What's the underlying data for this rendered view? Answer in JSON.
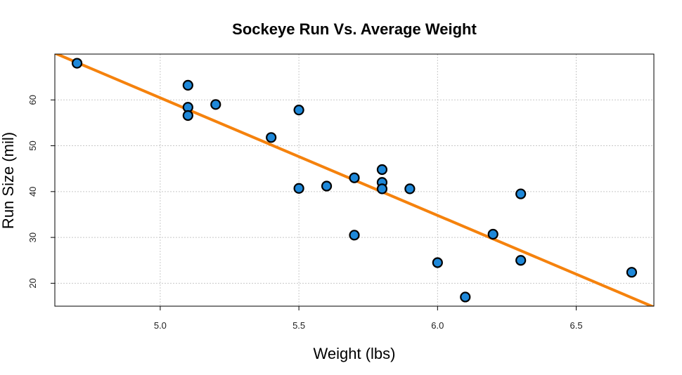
{
  "chart_data": {
    "type": "scatter",
    "title": "Sockeye Run Vs. Average Weight",
    "xlabel": "Weight (lbs)",
    "ylabel": "Run Size (mil)",
    "xlim": [
      4.62,
      6.78
    ],
    "ylim": [
      15,
      70
    ],
    "x_ticks": [
      5.0,
      5.5,
      6.0,
      6.5
    ],
    "x_tick_labels": [
      "5.0",
      "5.5",
      "6.0",
      "6.5"
    ],
    "y_ticks": [
      20,
      30,
      40,
      50,
      60
    ],
    "y_tick_labels": [
      "20",
      "30",
      "40",
      "50",
      "60"
    ],
    "grid": true,
    "point_color": "#1e88d9",
    "line_color": "#f5820d",
    "points": [
      {
        "x": 4.7,
        "y": 68.0
      },
      {
        "x": 5.1,
        "y": 63.2
      },
      {
        "x": 5.1,
        "y": 58.4
      },
      {
        "x": 5.1,
        "y": 56.6
      },
      {
        "x": 5.2,
        "y": 59.0
      },
      {
        "x": 5.4,
        "y": 51.8
      },
      {
        "x": 5.5,
        "y": 57.8
      },
      {
        "x": 5.5,
        "y": 40.7
      },
      {
        "x": 5.6,
        "y": 41.2
      },
      {
        "x": 5.7,
        "y": 43.0
      },
      {
        "x": 5.7,
        "y": 30.5
      },
      {
        "x": 5.8,
        "y": 44.8
      },
      {
        "x": 5.8,
        "y": 42.0
      },
      {
        "x": 5.8,
        "y": 40.6
      },
      {
        "x": 5.9,
        "y": 40.6
      },
      {
        "x": 6.0,
        "y": 24.5
      },
      {
        "x": 6.1,
        "y": 17.0
      },
      {
        "x": 6.2,
        "y": 30.7
      },
      {
        "x": 6.3,
        "y": 39.5
      },
      {
        "x": 6.3,
        "y": 25.0
      },
      {
        "x": 6.7,
        "y": 22.4
      }
    ],
    "regression_line": {
      "x": [
        4.62,
        6.78
      ],
      "y": [
        70.2,
        14.8
      ]
    }
  }
}
